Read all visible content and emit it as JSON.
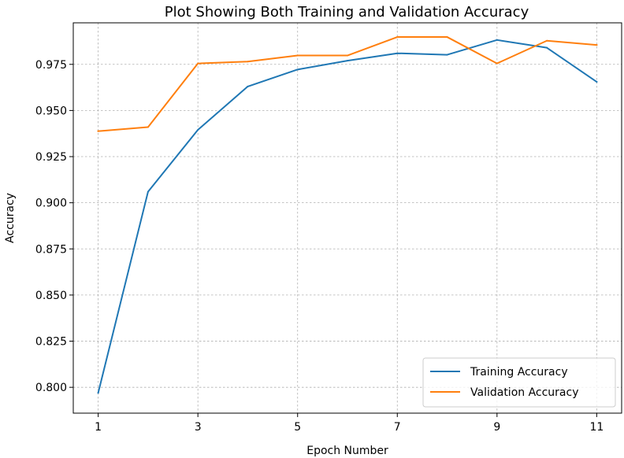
{
  "chart_data": {
    "type": "line",
    "title": "Plot Showing Both Training and Validation Accuracy",
    "xlabel": "Epoch Number",
    "ylabel": "Accuracy",
    "x": [
      1,
      2,
      3,
      4,
      5,
      6,
      7,
      8,
      9,
      10,
      11
    ],
    "xticks": [
      1,
      3,
      5,
      7,
      9,
      11
    ],
    "yticks": [
      0.8,
      0.825,
      0.85,
      0.875,
      0.9,
      0.925,
      0.95,
      0.975
    ],
    "ytick_labels": [
      "0.800",
      "0.825",
      "0.850",
      "0.875",
      "0.900",
      "0.925",
      "0.950",
      "0.975"
    ],
    "xlim": [
      0.5,
      11.5
    ],
    "ylim": [
      0.786,
      0.9975
    ],
    "grid": true,
    "legend_position": "lower-right",
    "series": [
      {
        "name": "Training Accuracy",
        "color": "#1f77b4",
        "values": [
          0.797,
          0.906,
          0.9395,
          0.963,
          0.9722,
          0.977,
          0.981,
          0.9802,
          0.9882,
          0.984,
          0.9655
        ]
      },
      {
        "name": "Validation Accuracy",
        "color": "#ff7f0e",
        "values": [
          0.9388,
          0.941,
          0.9755,
          0.9765,
          0.9798,
          0.9798,
          0.9898,
          0.9898,
          0.9755,
          0.9878,
          0.9855
        ]
      }
    ]
  }
}
